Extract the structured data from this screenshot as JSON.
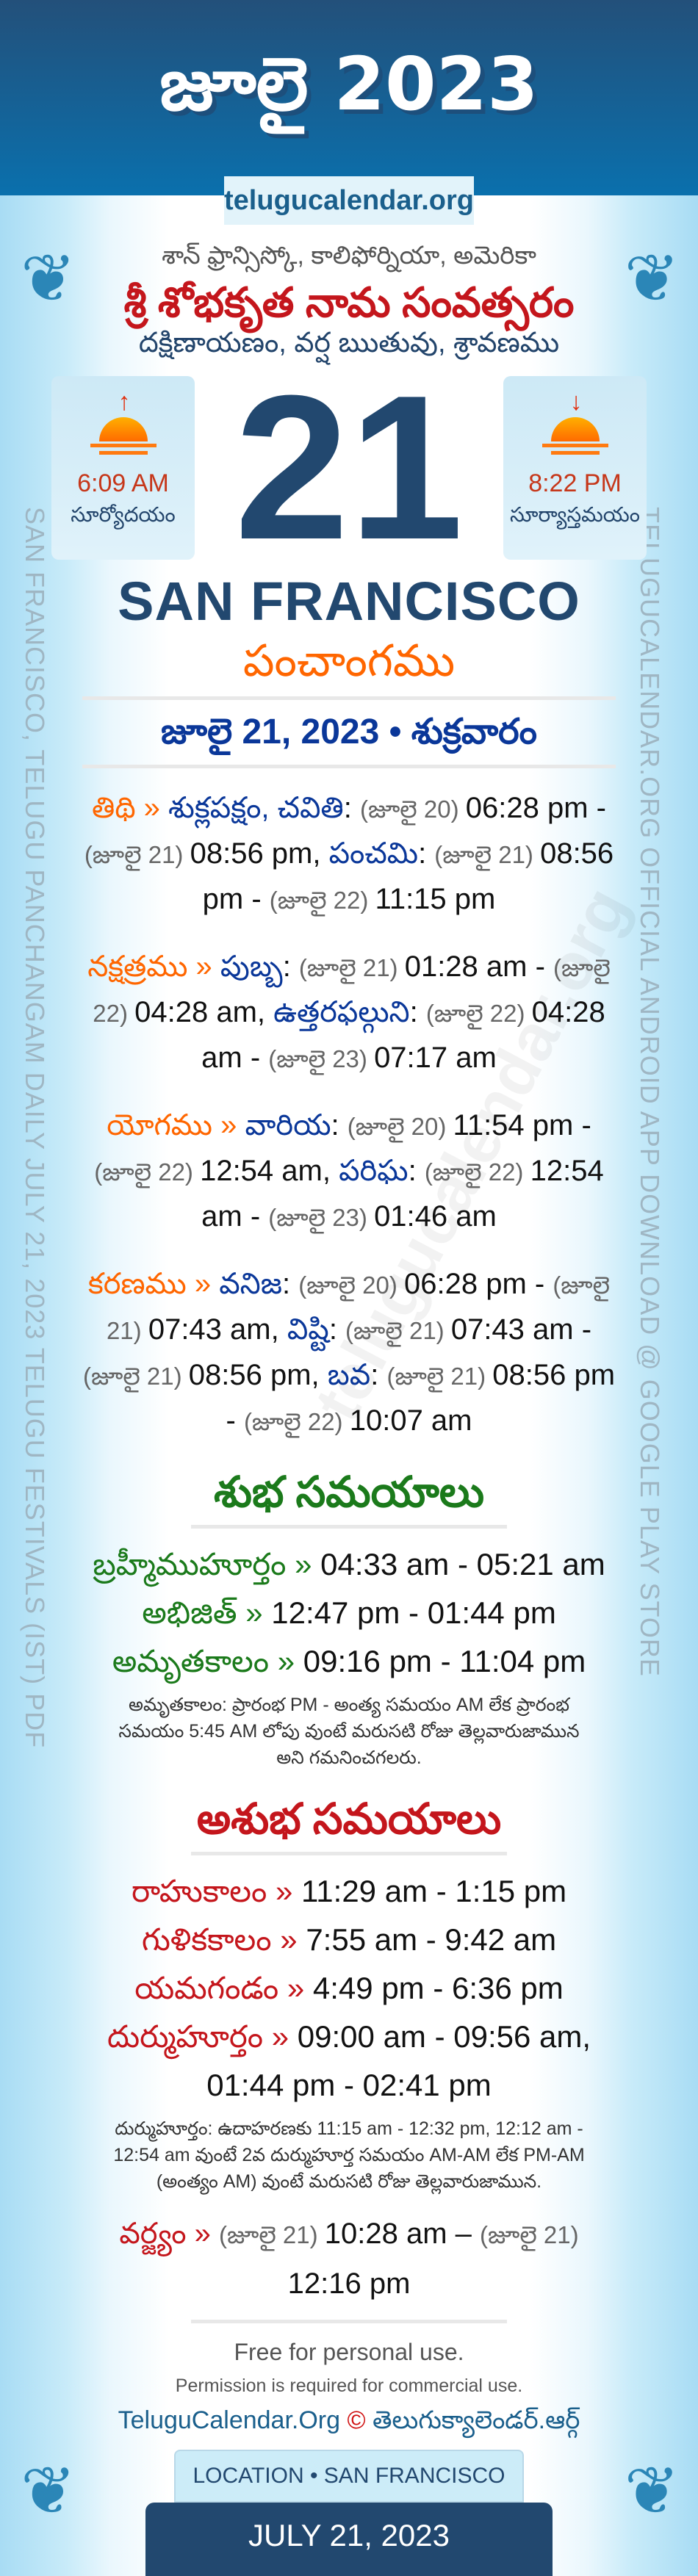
{
  "header": {
    "title": "జూలై 2023",
    "site": "telugucalendar.org"
  },
  "side": {
    "left": "SAN FRANCISCO, TELUGU PANCHANGAM DAILY JULY 21, 2023 TELUGU FESTIVALS (IST) PDF",
    "right": "TELUGUCALENDAR.ORG OFFICIAL ANDROID APP DOWNLOAD @ GOOGLE PLAY STORE"
  },
  "location_te": "శాన్ ఫ్రాన్సిస్కో, కాలిఫోర్నియా, అమెరికా",
  "samvatsaram": "శ్రీ శోభకృత నామ సంవత్సరం",
  "ayanam": "దక్షిణాయణం, వర్ష ఋతువు, శ్రావణము",
  "sunrise": {
    "time": "6:09 AM",
    "label": "సూర్యోదయం",
    "icon": "sunrise-icon"
  },
  "sunset": {
    "time": "8:22 PM",
    "label": "సూర్యాస్తమయం",
    "icon": "sunset-icon"
  },
  "day": "21",
  "city": "SAN FRANCISCO",
  "panchangam_title": "పంచాంగము",
  "date_line": "జూలై 21, 2023 • శుక్రవారం",
  "watermark": "telugucalendar.org",
  "panchang": [
    [
      [
        "lab",
        "తిథి » "
      ],
      [
        "nm",
        "శుక్లపక్షం, చవితి"
      ],
      [
        "tm",
        ": "
      ],
      [
        "dt",
        "(జూలై 20) "
      ],
      [
        "tm",
        "06:28 pm - "
      ],
      [
        "dt",
        "(జూలై 21) "
      ],
      [
        "tm",
        "08:56 pm, "
      ],
      [
        "nm",
        "పంచమి"
      ],
      [
        "tm",
        ": "
      ],
      [
        "dt",
        "(జూలై 21) "
      ],
      [
        "tm",
        "08:56 pm - "
      ],
      [
        "dt",
        "(జూలై 22) "
      ],
      [
        "tm",
        "11:15 pm"
      ]
    ],
    [
      [
        "lab",
        "నక్షత్రము » "
      ],
      [
        "nm",
        "పుబ్బ"
      ],
      [
        "tm",
        ": "
      ],
      [
        "dt",
        "(జూలై 21) "
      ],
      [
        "tm",
        "01:28 am - "
      ],
      [
        "dt",
        "(జూలై 22) "
      ],
      [
        "tm",
        "04:28 am, "
      ],
      [
        "nm",
        "ఉత్తరఫల్గుని"
      ],
      [
        "tm",
        ": "
      ],
      [
        "dt",
        "(జూలై 22) "
      ],
      [
        "tm",
        "04:28 am - "
      ],
      [
        "dt",
        "(జూలై 23) "
      ],
      [
        "tm",
        "07:17 am"
      ]
    ],
    [
      [
        "lab",
        "యోగము » "
      ],
      [
        "nm",
        "వారియ"
      ],
      [
        "tm",
        ": "
      ],
      [
        "dt",
        "(జూలై 20) "
      ],
      [
        "tm",
        "11:54 pm - "
      ],
      [
        "dt",
        "(జూలై 22) "
      ],
      [
        "tm",
        "12:54 am, "
      ],
      [
        "nm",
        "పరిఘ"
      ],
      [
        "tm",
        ": "
      ],
      [
        "dt",
        "(జూలై 22) "
      ],
      [
        "tm",
        "12:54 am - "
      ],
      [
        "dt",
        "(జూలై 23) "
      ],
      [
        "tm",
        "01:46 am"
      ]
    ],
    [
      [
        "lab",
        "కరణము » "
      ],
      [
        "nm",
        "వనిజ"
      ],
      [
        "tm",
        ": "
      ],
      [
        "dt",
        "(జూలై 20) "
      ],
      [
        "tm",
        "06:28 pm - "
      ],
      [
        "dt",
        "(జూలై 21) "
      ],
      [
        "tm",
        "07:43 am, "
      ],
      [
        "nm",
        "విష్టి"
      ],
      [
        "tm",
        ": "
      ],
      [
        "dt",
        "(జూలై 21) "
      ],
      [
        "tm",
        "07:43 am - "
      ],
      [
        "dt",
        "(జూలై 21) "
      ],
      [
        "tm",
        "08:56 pm, "
      ],
      [
        "nm",
        "బవ"
      ],
      [
        "tm",
        ": "
      ],
      [
        "dt",
        "(జూలై 21) "
      ],
      [
        "tm",
        "08:56 pm - "
      ],
      [
        "dt",
        "(జూలై 22) "
      ],
      [
        "tm",
        "10:07 am"
      ]
    ]
  ],
  "shubha": {
    "title": "శుభ సమయాలు",
    "items": [
      {
        "label": "బ్రహ్మీముహూర్తం » ",
        "time": "04:33 am - 05:21 am"
      },
      {
        "label": "అభిజిత్ » ",
        "time": "12:47 pm - 01:44 pm"
      },
      {
        "label": "అమృతకాలం » ",
        "time": "09:16 pm - 11:04 pm"
      }
    ],
    "note": "అమృతకాలం: ప్రారంభ PM - అంత్య సమయం AM లేక ప్రారంభ సమయం 5:45 AM లోపు వుంటే మరుసటి రోజు తెల్లవారుజామున అని గమనించగలరు."
  },
  "ashubha": {
    "title": "అశుభ సమయాలు",
    "items": [
      {
        "label": "రాహుకాలం » ",
        "time": "11:29 am - 1:15 pm"
      },
      {
        "label": "గుళికకాలం » ",
        "time": "7:55 am - 9:42 am"
      },
      {
        "label": "యమగండం » ",
        "time": "4:49 pm - 6:36 pm"
      },
      {
        "label": "దుర్ముహూర్తం » ",
        "time": "09:00 am - 09:56 am, 01:44 pm - 02:41 pm"
      }
    ],
    "note": "దుర్ముహూర్తం: ఉదాహరణకు 11:15 am - 12:32 pm, 12:12 am - 12:54 am వుంటే 2వ దుర్ముహూర్త సమయం AM-AM లేక PM-AM (అంత్యం AM) వుంటే మరుసటి రోజు తెల్లవారుజామున.",
    "varjyam": [
      [
        "r",
        "వర్జ్యం » "
      ],
      [
        "dt",
        "(జూలై 21) "
      ],
      [
        "tm",
        "10:28 am – "
      ],
      [
        "dt",
        "(జూలై 21) "
      ],
      [
        "tm",
        "12:16 pm"
      ]
    ]
  },
  "footer": {
    "free": "Free for personal use.",
    "permission": "Permission is required for commercial use.",
    "site_en": "TeluguCalendar.Org",
    "copyright": "©",
    "site_te": "తెలుగుక్యాలెండర్.ఆర్గ్",
    "location": "LOCATION • SAN FRANCISCO",
    "date": "JULY 21, 2023"
  },
  "colors": {
    "header": "#1d5a8c",
    "accent_orange": "#ff6600",
    "name_blue": "#0a3799",
    "shubha_green": "#1b7a1b",
    "ashubha_red": "#c4161c",
    "navy": "#22486f"
  }
}
